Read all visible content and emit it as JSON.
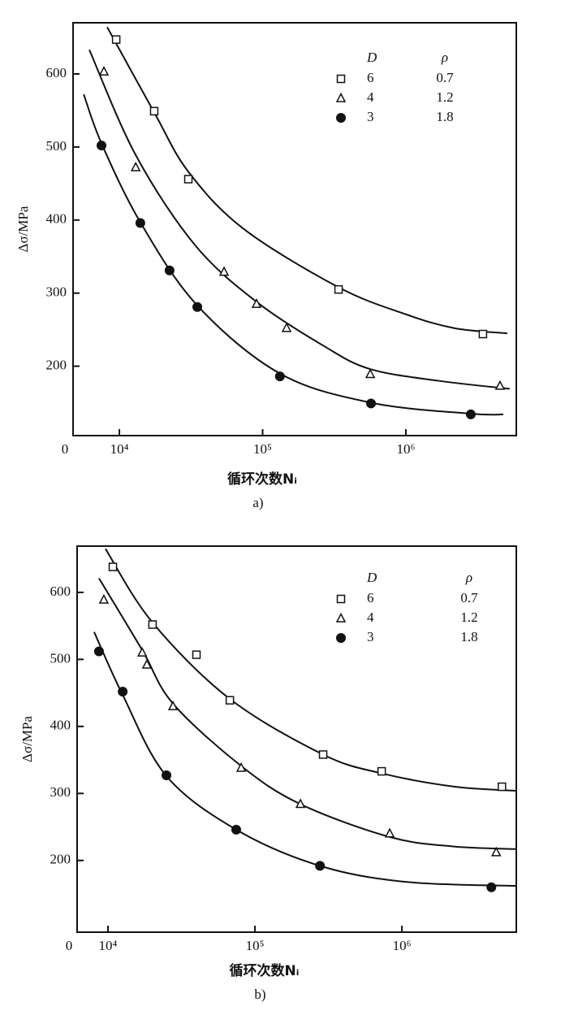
{
  "chart_data": [
    {
      "type": "scatter",
      "caption": "a)",
      "xlabel": "循环次数Nᵢ",
      "ylabel": "Δσ/MPa",
      "origin_label": "0",
      "xlog": true,
      "xlim": [
        4750,
        5900000
      ],
      "ylim": [
        105,
        670
      ],
      "xticks": [
        {
          "value": 10000,
          "label": "10⁴"
        },
        {
          "value": 100000,
          "label": "10⁵"
        },
        {
          "value": 1000000,
          "label": "10⁶"
        }
      ],
      "yticks": [
        200,
        300,
        400,
        500,
        600
      ],
      "legend_headers": [
        "D",
        "ρ"
      ],
      "series": [
        {
          "name": "6",
          "rho": 0.7,
          "marker": "square",
          "color": "#111111",
          "x": [
            9500,
            17500,
            30300,
            339000,
            3450000
          ],
          "values": [
            647,
            549,
            456,
            305,
            244
          ],
          "curve_x": [
            8220,
            17540,
            30340,
            73620,
            338800,
            1000000,
            2190000,
            5100000
          ],
          "curve_values": [
            664,
            547,
            466,
            388,
            308,
            271,
            252,
            245
          ]
        },
        {
          "name": "4",
          "rho": 1.2,
          "marker": "triangle",
          "color": "#111111",
          "x": [
            7800,
            13000,
            53800,
            90700,
            147000,
            564000,
            4540000
          ],
          "values": [
            603,
            472,
            329,
            285,
            252,
            189,
            173
          ],
          "curve_x": [
            6170,
            13000,
            33650,
            90800,
            271000,
            564000,
            1690000,
            5300000
          ],
          "curve_values": [
            633,
            489,
            366,
            288,
            227,
            196,
            180,
            169
          ]
        },
        {
          "name": "3",
          "rho": 1.8,
          "marker": "circle",
          "color": "#111111",
          "x": [
            7500,
            14000,
            22400,
            35000,
            132000,
            571000,
            2840000
          ],
          "values": [
            502,
            396,
            331,
            281,
            186,
            149,
            134
          ],
          "curve_x": [
            5640,
            7500,
            14000,
            35000,
            132000,
            571000,
            2840000,
            4790000
          ],
          "curve_values": [
            572,
            505,
            397,
            283,
            190,
            150,
            135,
            134
          ]
        }
      ]
    },
    {
      "type": "scatter",
      "caption": "b)",
      "xlabel": "循环次数Nᵢ",
      "ylabel": "Δσ/MPa",
      "origin_label": "0",
      "xlog": true,
      "xlim": [
        6170,
        6000000
      ],
      "ylim": [
        93,
        669
      ],
      "xticks": [
        {
          "value": 10000,
          "label": "10⁴"
        },
        {
          "value": 100000,
          "label": "10⁵"
        },
        {
          "value": 1000000,
          "label": "10⁶"
        }
      ],
      "yticks": [
        200,
        300,
        400,
        500,
        600
      ],
      "legend_headers": [
        "D",
        "ρ"
      ],
      "series": [
        {
          "name": "6",
          "rho": 0.7,
          "marker": "square",
          "color": "#111111",
          "x": [
            10800,
            20100,
            40000,
            67500,
            291000,
            728000,
            4790000
          ],
          "values": [
            638,
            552,
            507,
            439,
            358,
            333,
            310
          ],
          "curve_x": [
            9620,
            20100,
            67500,
            291000,
            728000,
            2290000,
            6000000
          ],
          "curve_values": [
            665,
            555,
            441,
            358,
            330,
            310,
            304
          ]
        },
        {
          "name": "4",
          "rho": 1.2,
          "marker": "triangle",
          "color": "#111111",
          "x": [
            9380,
            17100,
            18400,
            27700,
            80600,
            204000,
            826000,
            4380000
          ],
          "values": [
            589,
            510,
            492,
            430,
            338,
            284,
            240,
            212
          ],
          "curve_x": [
            8690,
            17100,
            27700,
            80600,
            204000,
            826000,
            2230000,
            6000000
          ],
          "curve_values": [
            621,
            514,
            434,
            341,
            284,
            235,
            221,
            217
          ]
        },
        {
          "name": "3",
          "rho": 1.8,
          "marker": "circle",
          "color": "#111111",
          "x": [
            8690,
            12600,
            25000,
            74600,
            277000,
            4060000
          ],
          "values": [
            512,
            452,
            327,
            246,
            192,
            160
          ],
          "curve_x": [
            8050,
            12600,
            25000,
            74600,
            277000,
            1070000,
            6000000
          ],
          "curve_values": [
            541,
            447,
            326,
            246,
            192,
            168,
            162
          ]
        }
      ]
    }
  ]
}
